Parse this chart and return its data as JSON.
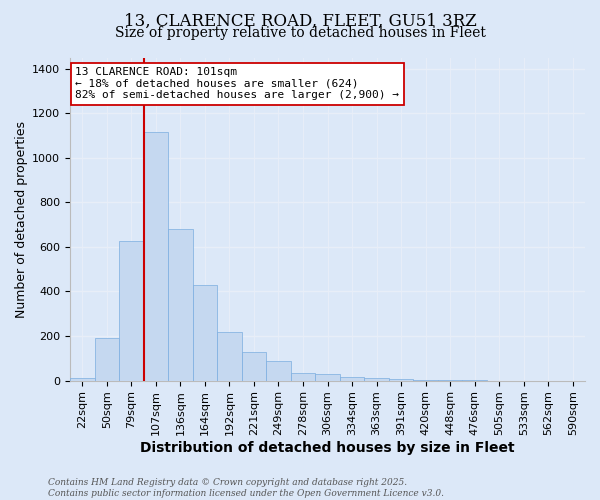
{
  "title_line1": "13, CLARENCE ROAD, FLEET, GU51 3RZ",
  "title_line2": "Size of property relative to detached houses in Fleet",
  "xlabel": "Distribution of detached houses by size in Fleet",
  "ylabel": "Number of detached properties",
  "categories": [
    "22sqm",
    "50sqm",
    "79sqm",
    "107sqm",
    "136sqm",
    "164sqm",
    "192sqm",
    "221sqm",
    "249sqm",
    "278sqm",
    "306sqm",
    "334sqm",
    "363sqm",
    "391sqm",
    "420sqm",
    "448sqm",
    "476sqm",
    "505sqm",
    "533sqm",
    "562sqm",
    "590sqm"
  ],
  "values": [
    10,
    190,
    625,
    1115,
    680,
    430,
    220,
    130,
    90,
    35,
    30,
    15,
    10,
    5,
    3,
    2,
    1,
    0,
    0,
    0,
    0
  ],
  "bar_color": "#c5d8f0",
  "bar_edge_color": "#7aade0",
  "vline_color": "#cc0000",
  "vline_pos": 2.5,
  "annotation_text": "13 CLARENCE ROAD: 101sqm\n← 18% of detached houses are smaller (624)\n82% of semi-detached houses are larger (2,900) →",
  "ylim": [
    0,
    1450
  ],
  "yticks": [
    0,
    200,
    400,
    600,
    800,
    1000,
    1200,
    1400
  ],
  "footer": "Contains HM Land Registry data © Crown copyright and database right 2025.\nContains public sector information licensed under the Open Government Licence v3.0.",
  "bg_color": "#dce8f8",
  "grid_color": "#e8eef8",
  "title_fontsize": 12,
  "subtitle_fontsize": 10,
  "ylabel_fontsize": 9,
  "xlabel_fontsize": 10,
  "tick_fontsize": 8,
  "footer_fontsize": 6.5,
  "annot_fontsize": 8
}
